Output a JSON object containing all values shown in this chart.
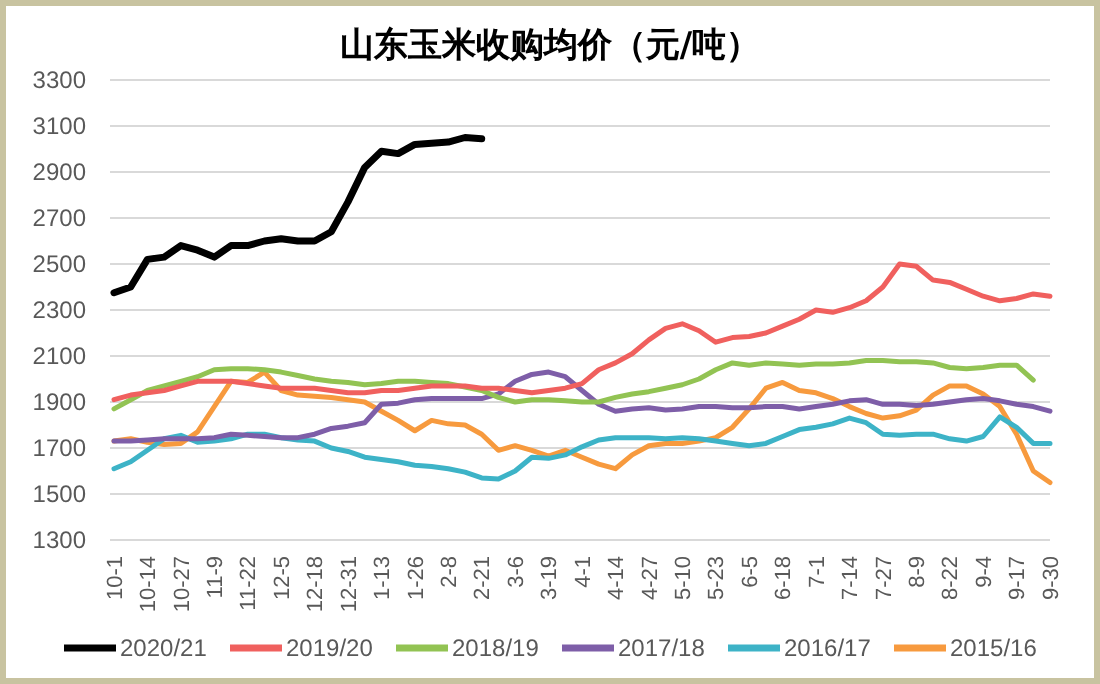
{
  "chart_data": {
    "type": "line",
    "title": "山东玉米收购均价（元/吨）",
    "categories": [
      "10-1",
      null,
      "10-14",
      null,
      "10-27",
      null,
      "11-9",
      null,
      "11-22",
      null,
      "12-5",
      null,
      "12-18",
      null,
      "12-31",
      null,
      "1-13",
      null,
      "1-26",
      null,
      "2-8",
      null,
      "2-21",
      null,
      "3-6",
      null,
      "3-19",
      null,
      "4-1",
      null,
      "4-14",
      null,
      "4-27",
      null,
      "5-10",
      null,
      "5-23",
      null,
      "6-5",
      null,
      "6-18",
      null,
      "7-1",
      null,
      "7-14",
      null,
      "7-27",
      null,
      "8-9",
      null,
      "8-22",
      null,
      "9-4",
      null,
      "9-17",
      null,
      "9-30"
    ],
    "ylim": [
      1300,
      3300
    ],
    "yticks": [
      1300,
      1500,
      1700,
      1900,
      2100,
      2300,
      2500,
      2700,
      2900,
      3100,
      3300
    ],
    "grid": "y",
    "legend": "bottom",
    "line_style": "solid",
    "series": [
      {
        "name": "2020/21",
        "color": "#000000",
        "values": [
          2375,
          2400,
          2520,
          2530,
          2580,
          2560,
          2530,
          2580,
          2580,
          2600,
          2610,
          2600,
          2600,
          2640,
          2770,
          2920,
          2990,
          2980,
          3020,
          3025,
          3030,
          3050,
          3045,
          null,
          null,
          null,
          null,
          null,
          null,
          null,
          null,
          null,
          null,
          null,
          null,
          null,
          null,
          null,
          null,
          null,
          null,
          null,
          null,
          null,
          null,
          null,
          null,
          null,
          null,
          null,
          null,
          null,
          null,
          null,
          null,
          null,
          null
        ]
      },
      {
        "name": "2019/20",
        "color": "#f0605e",
        "values": [
          1910,
          1930,
          1940,
          1950,
          1970,
          1990,
          1990,
          1990,
          1980,
          1970,
          1960,
          1960,
          1960,
          1950,
          1940,
          1940,
          1950,
          1950,
          1960,
          1970,
          1970,
          1970,
          1960,
          1960,
          1950,
          1940,
          1950,
          1960,
          1980,
          2040,
          2070,
          2110,
          2170,
          2220,
          2240,
          2210,
          2160,
          2180,
          2185,
          2200,
          2230,
          2260,
          2300,
          2290,
          2310,
          2340,
          2400,
          2500,
          2490,
          2430,
          2420,
          2390,
          2360,
          2340,
          2350,
          2370,
          2360
        ]
      },
      {
        "name": "2018/19",
        "color": "#92c353",
        "values": [
          1870,
          1910,
          1950,
          1970,
          1990,
          2010,
          2040,
          2045,
          2045,
          2040,
          2030,
          2015,
          2000,
          1990,
          1985,
          1975,
          1980,
          1990,
          1990,
          1985,
          1980,
          1965,
          1950,
          1920,
          1900,
          1910,
          1910,
          1905,
          1900,
          1900,
          1920,
          1935,
          1945,
          1960,
          1975,
          2000,
          2040,
          2070,
          2060,
          2070,
          2065,
          2060,
          2065,
          2065,
          2070,
          2080,
          2080,
          2075,
          2075,
          2070,
          2050,
          2045,
          2050,
          2060,
          2060,
          1995,
          null
        ]
      },
      {
        "name": "2017/18",
        "color": "#7e5ea8",
        "values": [
          1730,
          1730,
          1735,
          1740,
          1740,
          1740,
          1745,
          1760,
          1755,
          1750,
          1745,
          1745,
          1760,
          1785,
          1795,
          1810,
          1890,
          1895,
          1910,
          1915,
          1915,
          1915,
          1915,
          1935,
          1990,
          2020,
          2030,
          2010,
          1950,
          1890,
          1860,
          1870,
          1875,
          1865,
          1870,
          1880,
          1880,
          1875,
          1875,
          1880,
          1880,
          1870,
          1880,
          1890,
          1905,
          1910,
          1890,
          1890,
          1885,
          1890,
          1900,
          1910,
          1915,
          1905,
          1890,
          1880,
          1860
        ]
      },
      {
        "name": "2016/17",
        "color": "#3db3c7",
        "values": [
          1610,
          1640,
          1690,
          1740,
          1755,
          1725,
          1730,
          1740,
          1760,
          1760,
          1745,
          1735,
          1730,
          1700,
          1685,
          1660,
          1650,
          1640,
          1625,
          1620,
          1610,
          1595,
          1570,
          1565,
          1600,
          1660,
          1655,
          1670,
          1705,
          1735,
          1745,
          1745,
          1745,
          1740,
          1745,
          1740,
          1730,
          1720,
          1710,
          1720,
          1750,
          1780,
          1790,
          1805,
          1830,
          1810,
          1760,
          1755,
          1760,
          1760,
          1740,
          1730,
          1750,
          1835,
          1790,
          1720,
          1720
        ]
      },
      {
        "name": "2015/16",
        "color": "#f79a3e",
        "values": [
          1730,
          1740,
          1725,
          1715,
          1720,
          1770,
          1880,
          1990,
          1985,
          2030,
          1950,
          1930,
          1925,
          1920,
          1910,
          1900,
          1860,
          1820,
          1775,
          1820,
          1805,
          1800,
          1760,
          1690,
          1710,
          1690,
          1665,
          1690,
          1660,
          1630,
          1610,
          1670,
          1710,
          1720,
          1720,
          1730,
          1745,
          1790,
          1870,
          1960,
          1985,
          1950,
          1940,
          1915,
          1880,
          1850,
          1830,
          1840,
          1865,
          1930,
          1970,
          1970,
          1935,
          1880,
          1760,
          1600,
          1550
        ]
      }
    ]
  }
}
